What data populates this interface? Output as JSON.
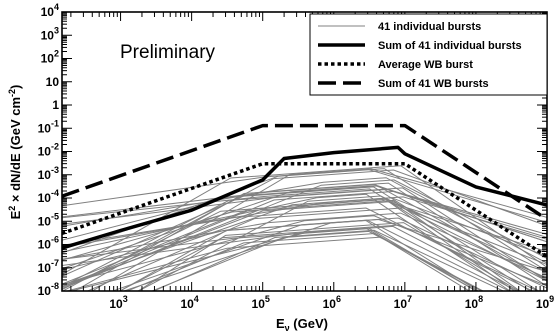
{
  "chart_data": {
    "type": "line",
    "title": "",
    "annotation": "Preliminary",
    "xlabel": {
      "main": "E",
      "sub": "ν",
      "unit": " (GeV)"
    },
    "ylabel": {
      "p1": "E",
      "sup1": "2",
      "p2": " × dN/dE (GeV cm",
      "sup2": "-2",
      "p3": ")"
    },
    "x_scale": "log",
    "y_scale": "log",
    "xlim": [
      150,
      1000000000
    ],
    "ylim": [
      1e-08,
      10000
    ],
    "x_ticks": [
      {
        "v": 1000,
        "base": "10",
        "exp": "3"
      },
      {
        "v": 10000,
        "base": "10",
        "exp": "4"
      },
      {
        "v": 100000,
        "base": "10",
        "exp": "5"
      },
      {
        "v": 1000000,
        "base": "10",
        "exp": "6"
      },
      {
        "v": 10000000,
        "base": "10",
        "exp": "7"
      },
      {
        "v": 100000000,
        "base": "10",
        "exp": "8"
      },
      {
        "v": 1000000000,
        "base": "10",
        "exp": "9"
      }
    ],
    "y_ticks": [
      {
        "v": 1e-08,
        "base": "10",
        "exp": "-8"
      },
      {
        "v": 1e-07,
        "base": "10",
        "exp": "-7"
      },
      {
        "v": 1e-06,
        "base": "10",
        "exp": "-6"
      },
      {
        "v": 1e-05,
        "base": "10",
        "exp": "-5"
      },
      {
        "v": 0.0001,
        "base": "10",
        "exp": "-4"
      },
      {
        "v": 0.001,
        "base": "10",
        "exp": "-3"
      },
      {
        "v": 0.01,
        "base": "10",
        "exp": "-2"
      },
      {
        "v": 0.1,
        "base": "10",
        "exp": "-1"
      },
      {
        "v": 1,
        "base": "",
        "exp": "",
        "plain": "1"
      },
      {
        "v": 10,
        "base": "",
        "exp": "",
        "plain": "10"
      },
      {
        "v": 100,
        "base": "10",
        "exp": "2"
      },
      {
        "v": 1000,
        "base": "10",
        "exp": "3"
      },
      {
        "v": 10000,
        "base": "10",
        "exp": "4"
      }
    ],
    "grid": false,
    "legend_position": "top-right",
    "series": [
      {
        "name": "Sum of 41 WB bursts",
        "style": "dashed",
        "color": "#000000",
        "points": [
          [
            150,
            0.00012
          ],
          [
            100000,
            0.13
          ],
          [
            10000000,
            0.13
          ],
          [
            1000000000,
            1.2e-05
          ]
        ]
      },
      {
        "name": "Sum of 41 individual bursts",
        "style": "solid-thick",
        "color": "#000000",
        "points": [
          [
            150,
            7e-07
          ],
          [
            1000,
            4e-06
          ],
          [
            10000,
            3e-05
          ],
          [
            100000,
            0.0006
          ],
          [
            200000,
            0.005
          ],
          [
            1000000,
            0.009
          ],
          [
            8000000,
            0.015
          ],
          [
            10000000,
            0.008
          ],
          [
            100000000,
            0.0003
          ],
          [
            1000000000,
            5e-05
          ]
        ]
      },
      {
        "name": "Average WB burst",
        "style": "dotted",
        "color": "#000000",
        "points": [
          [
            150,
            3e-06
          ],
          [
            100000,
            0.003
          ],
          [
            10000000,
            0.003
          ],
          [
            1000000000,
            3e-07
          ]
        ]
      }
    ],
    "individual_bursts": {
      "name": "41 individual bursts",
      "color": "#808080",
      "count": 41,
      "seed": 17,
      "peak_range": [
        2e-06,
        0.0025
      ],
      "slope_range": [
        0.3,
        2.0
      ],
      "fall_range": [
        0.8,
        2.2
      ]
    }
  }
}
